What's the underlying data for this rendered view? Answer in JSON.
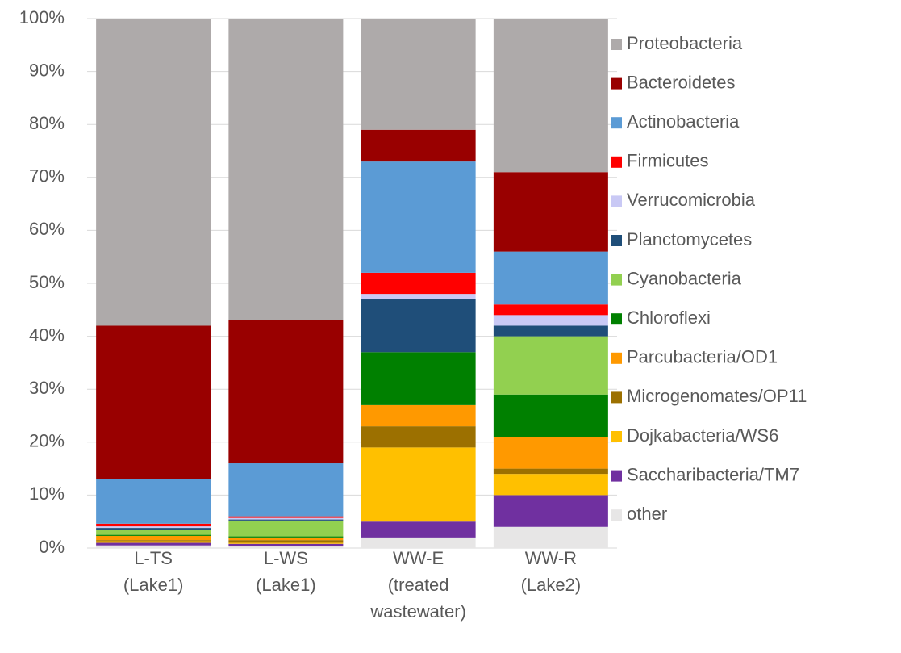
{
  "chart_data": {
    "type": "stacked_bar",
    "categories": [
      "L-TS (Lake1)",
      "L-WS (Lake1)",
      "WW-E (treated wastewater)",
      "WW-R (Lake2)"
    ],
    "series": [
      {
        "name": "Proteobacteria",
        "color": "#aeaaaa",
        "values": [
          58,
          57,
          21,
          29
        ]
      },
      {
        "name": "Bacteroidetes",
        "color": "#990000",
        "values": [
          29,
          27,
          6,
          15
        ]
      },
      {
        "name": "Actinobacteria",
        "color": "#5b9bd5",
        "values": [
          8.4,
          10,
          21,
          10
        ]
      },
      {
        "name": "Firmicutes",
        "color": "#ff0000",
        "values": [
          0.5,
          0.3,
          4,
          2
        ]
      },
      {
        "name": "Verrucomicrobia",
        "color": "#c9c9f5",
        "values": [
          0.3,
          0.3,
          1,
          2
        ]
      },
      {
        "name": "Planctomycetes",
        "color": "#1f4e79",
        "values": [
          0.3,
          0.2,
          10,
          2
        ]
      },
      {
        "name": "Cyanobacteria",
        "color": "#92d050",
        "values": [
          1,
          3,
          0,
          11
        ]
      },
      {
        "name": "Chloroflexi",
        "color": "#008000",
        "values": [
          0.2,
          0.2,
          10,
          8
        ]
      },
      {
        "name": "Parcubacteria/OD1",
        "color": "#ff9900",
        "values": [
          0.8,
          0.5,
          4,
          6
        ]
      },
      {
        "name": "Microgenomates/OP11",
        "color": "#9c7000",
        "values": [
          0.2,
          0.5,
          4,
          1
        ]
      },
      {
        "name": "Dojkabacteria/WS6",
        "color": "#ffc000",
        "values": [
          0.3,
          0.2,
          14,
          4
        ]
      },
      {
        "name": "Saccharibacteria/TM7",
        "color": "#7030a0",
        "values": [
          0.5,
          0.5,
          3,
          6
        ]
      },
      {
        "name": "other",
        "color": "#e7e6e6",
        "values": [
          0.5,
          0.3,
          2,
          4
        ]
      }
    ],
    "ylim": [
      0,
      100
    ],
    "yticks": [
      {
        "value": 0,
        "label": "0%"
      },
      {
        "value": 10,
        "label": "10%"
      },
      {
        "value": 20,
        "label": "20%"
      },
      {
        "value": 30,
        "label": "30%"
      },
      {
        "value": 40,
        "label": "40%"
      },
      {
        "value": 50,
        "label": "50%"
      },
      {
        "value": 60,
        "label": "60%"
      },
      {
        "value": 70,
        "label": "70%"
      },
      {
        "value": 80,
        "label": "80%"
      },
      {
        "value": 90,
        "label": "90%"
      },
      {
        "value": 100,
        "label": "100%"
      }
    ],
    "grid": true,
    "legend": "right"
  }
}
